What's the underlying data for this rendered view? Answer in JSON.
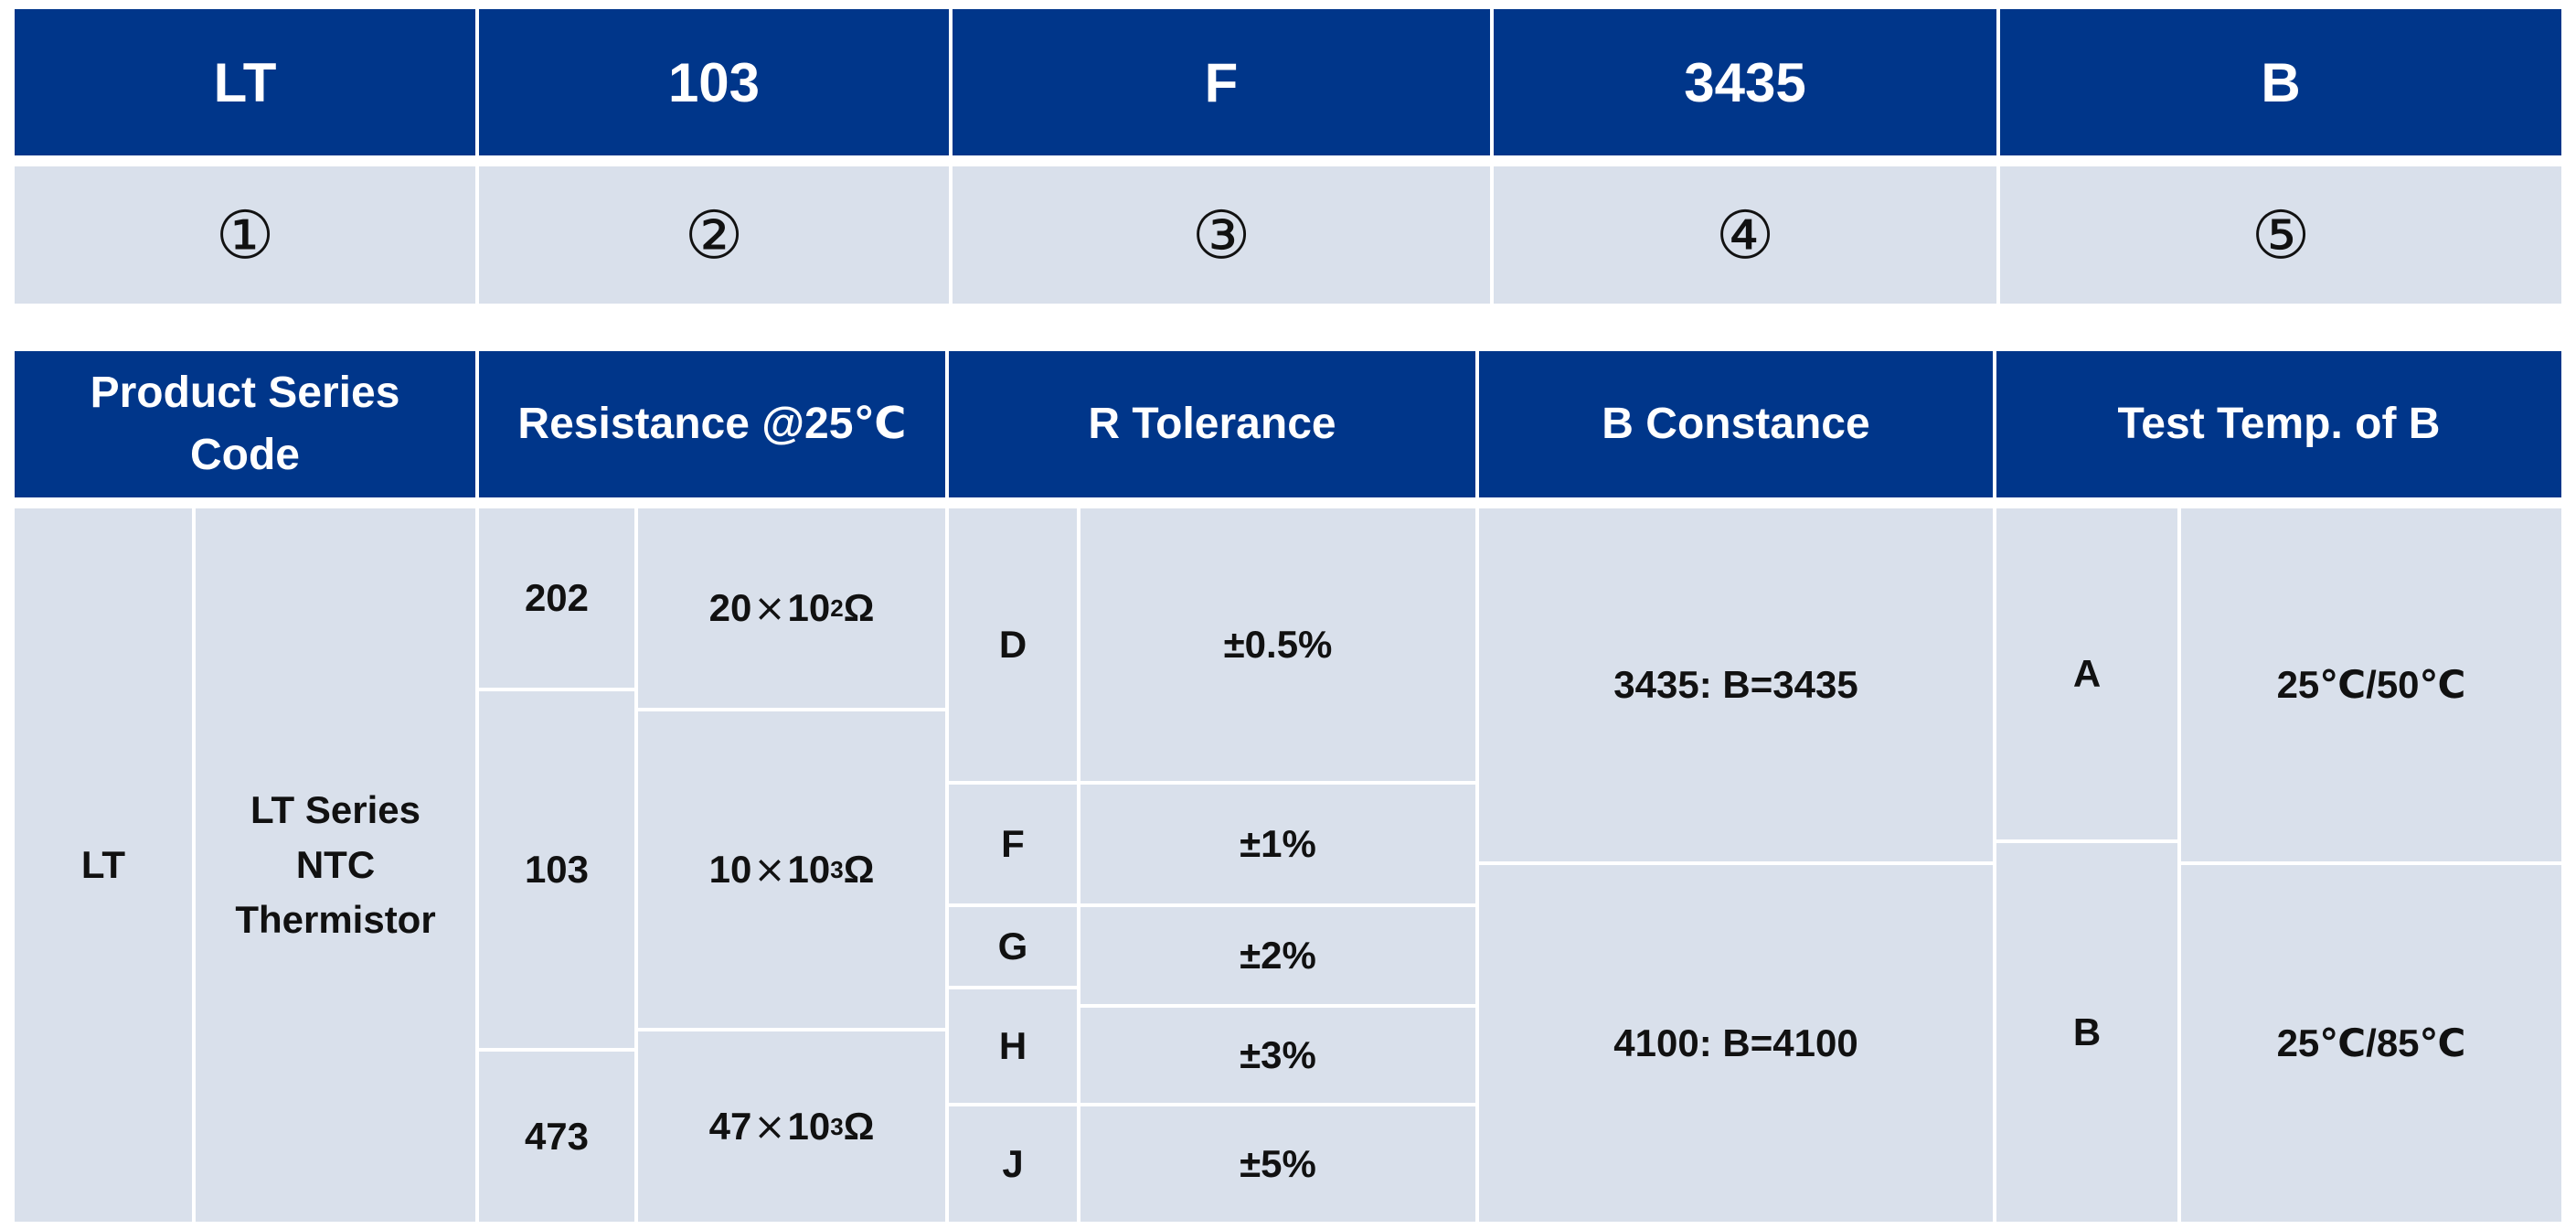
{
  "top_row": {
    "codes": [
      "LT",
      "103",
      "F",
      "3435",
      "B"
    ],
    "markers": [
      "①",
      "②",
      "③",
      "④",
      "⑤"
    ]
  },
  "headers": {
    "series": "Product Series Code",
    "resistance": "Resistance @25℃",
    "tolerance": "R Tolerance",
    "b_constance": "B Constance",
    "test_temp": "Test Temp. of B"
  },
  "series": {
    "code": "LT",
    "desc_line1": "LT Series",
    "desc_line2": "NTC",
    "desc_line3": "Thermistor"
  },
  "resistance": [
    {
      "code": "202",
      "mantissa": "20",
      "times": "×",
      "base": "10",
      "exp": "2",
      "unit": "Ω"
    },
    {
      "code": "103",
      "mantissa": "10",
      "times": "×",
      "base": "10",
      "exp": "3",
      "unit": "Ω"
    },
    {
      "code": "473",
      "mantissa": "47",
      "times": "×",
      "base": "10",
      "exp": "3",
      "unit": "Ω"
    }
  ],
  "tolerance": [
    {
      "code": "D",
      "value": "±0.5%"
    },
    {
      "code": "F",
      "value": "±1%"
    },
    {
      "code": "G",
      "value": "±2%"
    },
    {
      "code": "H",
      "value": "±3%"
    },
    {
      "code": "J",
      "value": "±5%"
    }
  ],
  "b_constance": [
    "3435: B=3435",
    "4100: B=4100"
  ],
  "test_temp": [
    {
      "code": "A",
      "value": "25℃/50℃"
    },
    {
      "code": "B",
      "value": "25℃/85℃"
    }
  ],
  "colors": {
    "header_bg": "#00368a",
    "body_bg": "#d9e0eb",
    "header_text": "#ffffff"
  }
}
